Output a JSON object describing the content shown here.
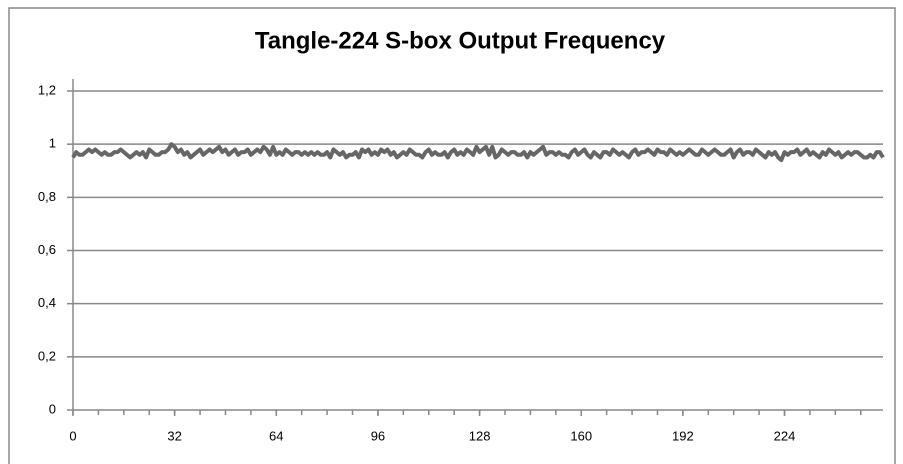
{
  "chart_data": {
    "type": "line",
    "title": "Tangle-224 S-box Output Frequency",
    "color": "#666666",
    "grid": true,
    "xlim": [
      0,
      255
    ],
    "xticks": [
      0,
      32,
      64,
      96,
      128,
      160,
      192,
      224
    ],
    "ylim": [
      0,
      1.2
    ],
    "yticks": [
      0,
      {
        "value": 0.2,
        "label": "0,2"
      },
      {
        "value": 0.4,
        "label": "0,4"
      },
      {
        "value": 0.6,
        "label": "0,6"
      },
      {
        "value": 0.8,
        "label": "0,8"
      },
      1,
      {
        "value": 1.2,
        "label": "1,2"
      }
    ],
    "x": [
      0,
      1,
      2,
      3,
      4,
      5,
      6,
      7,
      8,
      9,
      10,
      11,
      12,
      13,
      14,
      15,
      16,
      17,
      18,
      19,
      20,
      21,
      22,
      23,
      24,
      25,
      26,
      27,
      28,
      29,
      30,
      31,
      32,
      33,
      34,
      35,
      36,
      37,
      38,
      39,
      40,
      41,
      42,
      43,
      44,
      45,
      46,
      47,
      48,
      49,
      50,
      51,
      52,
      53,
      54,
      55,
      56,
      57,
      58,
      59,
      60,
      61,
      62,
      63,
      64,
      65,
      66,
      67,
      68,
      69,
      70,
      71,
      72,
      73,
      74,
      75,
      76,
      77,
      78,
      79,
      80,
      81,
      82,
      83,
      84,
      85,
      86,
      87,
      88,
      89,
      90,
      91,
      92,
      93,
      94,
      95,
      96,
      97,
      98,
      99,
      100,
      101,
      102,
      103,
      104,
      105,
      106,
      107,
      108,
      109,
      110,
      111,
      112,
      113,
      114,
      115,
      116,
      117,
      118,
      119,
      120,
      121,
      122,
      123,
      124,
      125,
      126,
      127,
      128,
      129,
      130,
      131,
      132,
      133,
      134,
      135,
      136,
      137,
      138,
      139,
      140,
      141,
      142,
      143,
      144,
      145,
      146,
      147,
      148,
      149,
      150,
      151,
      152,
      153,
      154,
      155,
      156,
      157,
      158,
      159,
      160,
      161,
      162,
      163,
      164,
      165,
      166,
      167,
      168,
      169,
      170,
      171,
      172,
      173,
      174,
      175,
      176,
      177,
      178,
      179,
      180,
      181,
      182,
      183,
      184,
      185,
      186,
      187,
      188,
      189,
      190,
      191,
      192,
      193,
      194,
      195,
      196,
      197,
      198,
      199,
      200,
      201,
      202,
      203,
      204,
      205,
      206,
      207,
      208,
      209,
      210,
      211,
      212,
      213,
      214,
      215,
      216,
      217,
      218,
      219,
      220,
      221,
      222,
      223,
      224,
      225,
      226,
      227,
      228,
      229,
      230,
      231,
      232,
      233,
      234,
      235,
      236,
      237,
      238,
      239,
      240,
      241,
      242,
      243,
      244,
      245,
      246,
      247,
      248,
      249,
      250,
      251,
      252,
      253,
      254,
      255
    ],
    "values": [
      0.95,
      0.97,
      0.96,
      0.96,
      0.97,
      0.98,
      0.97,
      0.98,
      0.97,
      0.96,
      0.97,
      0.96,
      0.96,
      0.97,
      0.97,
      0.98,
      0.97,
      0.96,
      0.95,
      0.96,
      0.97,
      0.96,
      0.97,
      0.95,
      0.98,
      0.97,
      0.96,
      0.96,
      0.97,
      0.97,
      0.98,
      1.0,
      0.99,
      0.97,
      0.98,
      0.96,
      0.97,
      0.95,
      0.96,
      0.97,
      0.98,
      0.96,
      0.97,
      0.98,
      0.97,
      0.98,
      0.99,
      0.97,
      0.98,
      0.96,
      0.97,
      0.98,
      0.96,
      0.97,
      0.97,
      0.98,
      0.96,
      0.97,
      0.98,
      0.97,
      0.99,
      0.98,
      0.96,
      0.99,
      0.96,
      0.97,
      0.96,
      0.98,
      0.97,
      0.96,
      0.97,
      0.97,
      0.96,
      0.97,
      0.96,
      0.97,
      0.96,
      0.97,
      0.96,
      0.96,
      0.97,
      0.95,
      0.98,
      0.97,
      0.96,
      0.97,
      0.95,
      0.96,
      0.96,
      0.97,
      0.95,
      0.98,
      0.97,
      0.98,
      0.96,
      0.97,
      0.96,
      0.98,
      0.97,
      0.98,
      0.96,
      0.97,
      0.95,
      0.96,
      0.97,
      0.96,
      0.98,
      0.97,
      0.96,
      0.96,
      0.95,
      0.97,
      0.98,
      0.96,
      0.97,
      0.96,
      0.96,
      0.97,
      0.95,
      0.97,
      0.98,
      0.96,
      0.97,
      0.96,
      0.98,
      0.97,
      0.96,
      0.99,
      0.97,
      0.98,
      0.99,
      0.96,
      0.99,
      0.95,
      0.96,
      0.98,
      0.97,
      0.96,
      0.97,
      0.97,
      0.96,
      0.96,
      0.97,
      0.95,
      0.97,
      0.96,
      0.97,
      0.98,
      0.99,
      0.96,
      0.97,
      0.97,
      0.96,
      0.97,
      0.96,
      0.96,
      0.95,
      0.97,
      0.98,
      0.96,
      0.97,
      0.98,
      0.96,
      0.95,
      0.97,
      0.96,
      0.95,
      0.97,
      0.97,
      0.96,
      0.98,
      0.97,
      0.96,
      0.97,
      0.96,
      0.95,
      0.97,
      0.98,
      0.96,
      0.97,
      0.97,
      0.98,
      0.97,
      0.96,
      0.98,
      0.97,
      0.97,
      0.96,
      0.98,
      0.97,
      0.96,
      0.97,
      0.96,
      0.97,
      0.98,
      0.97,
      0.96,
      0.96,
      0.98,
      0.97,
      0.96,
      0.97,
      0.98,
      0.97,
      0.96,
      0.96,
      0.97,
      0.98,
      0.95,
      0.97,
      0.98,
      0.96,
      0.97,
      0.97,
      0.96,
      0.98,
      0.97,
      0.96,
      0.95,
      0.97,
      0.96,
      0.97,
      0.95,
      0.94,
      0.97,
      0.96,
      0.97,
      0.97,
      0.98,
      0.96,
      0.97,
      0.98,
      0.96,
      0.97,
      0.96,
      0.95,
      0.97,
      0.96,
      0.98,
      0.97,
      0.96,
      0.97,
      0.95,
      0.96,
      0.97,
      0.96,
      0.97,
      0.97,
      0.96,
      0.95,
      0.95,
      0.96,
      0.95,
      0.97,
      0.97,
      0.95
    ]
  }
}
